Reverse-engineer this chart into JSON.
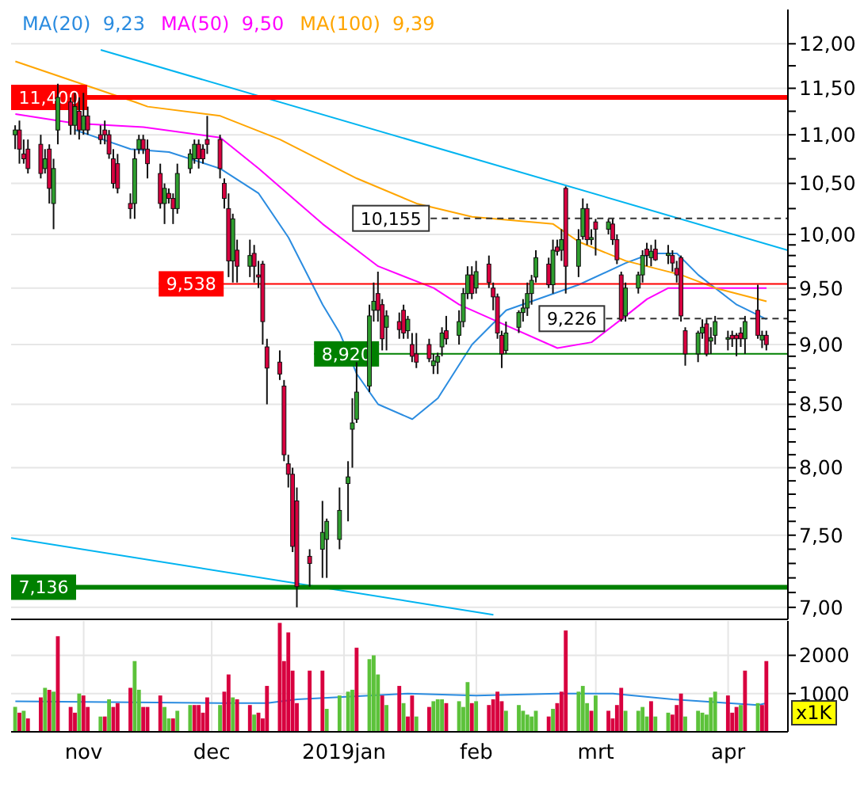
{
  "chart_data": [
    {
      "type": "candlestick",
      "log": true,
      "grid": true,
      "legend": "top left",
      "tick_labels": "y",
      "xlim": [
        "2018-10-15",
        "2019-04-15"
      ],
      "xticks": [
        {
          "value": "2018-11-01",
          "label": null
        },
        {
          "value": "2018-12-01",
          "label": null
        },
        {
          "value": "2019-01-01",
          "label": null
        },
        {
          "value": "2019-02-01",
          "label": null
        },
        {
          "value": "2019-03-01",
          "label": null
        },
        {
          "value": "2019-04-01",
          "label": null
        }
      ],
      "ylim": [
        6.92,
        12.4
      ],
      "yticks": [
        {
          "value": 7,
          "label": "7,00"
        },
        {
          "value": 7.1,
          "label": null
        },
        {
          "value": 7.2,
          "label": null
        },
        {
          "value": 7.3,
          "label": null
        },
        {
          "value": 7.4,
          "label": null
        },
        {
          "value": 7.5,
          "label": "7,50"
        },
        {
          "value": 7.6,
          "label": null
        },
        {
          "value": 7.7,
          "label": null
        },
        {
          "value": 7.8,
          "label": null
        },
        {
          "value": 7.9,
          "label": null
        },
        {
          "value": 8,
          "label": "8,00"
        },
        {
          "value": 8.1,
          "label": null
        },
        {
          "value": 8.2,
          "label": null
        },
        {
          "value": 8.3,
          "label": null
        },
        {
          "value": 8.4,
          "label": null
        },
        {
          "value": 8.5,
          "label": "8,50"
        },
        {
          "value": 8.6,
          "label": null
        },
        {
          "value": 8.7,
          "label": null
        },
        {
          "value": 8.8,
          "label": null
        },
        {
          "value": 8.9,
          "label": null
        },
        {
          "value": 9,
          "label": "9,00"
        },
        {
          "value": 9.1,
          "label": null
        },
        {
          "value": 9.2,
          "label": null
        },
        {
          "value": 9.3,
          "label": null
        },
        {
          "value": 9.4,
          "label": null
        },
        {
          "value": 9.5,
          "label": "9,50"
        },
        {
          "value": 9.6,
          "label": null
        },
        {
          "value": 9.7,
          "label": null
        },
        {
          "value": 9.8,
          "label": null
        },
        {
          "value": 9.9,
          "label": null
        },
        {
          "value": 10,
          "label": "10,00"
        },
        {
          "value": 10.25,
          "label": null
        },
        {
          "value": 10.5,
          "label": "10,50"
        },
        {
          "value": 10.75,
          "label": null
        },
        {
          "value": 11,
          "label": "11,00"
        },
        {
          "value": 11.25,
          "label": null
        },
        {
          "value": 11.5,
          "label": "11,50"
        },
        {
          "value": 11.75,
          "label": null
        },
        {
          "value": 12,
          "label": "12,00"
        }
      ],
      "x": [
        "2018-10-16",
        "2018-10-17",
        "2018-10-18",
        "2018-10-19",
        "2018-10-22",
        "2018-10-23",
        "2018-10-24",
        "2018-10-25",
        "2018-10-26",
        "2018-10-29",
        "2018-10-30",
        "2018-10-31",
        "2018-11-01",
        "2018-11-02",
        "2018-11-05",
        "2018-11-06",
        "2018-11-07",
        "2018-11-08",
        "2018-11-09",
        "2018-11-12",
        "2018-11-13",
        "2018-11-14",
        "2018-11-15",
        "2018-11-16",
        "2018-11-19",
        "2018-11-20",
        "2018-11-21",
        "2018-11-22",
        "2018-11-23",
        "2018-11-26",
        "2018-11-27",
        "2018-11-28",
        "2018-11-29",
        "2018-11-30",
        "2018-12-03",
        "2018-12-04",
        "2018-12-05",
        "2018-12-06",
        "2018-12-07",
        "2018-12-10",
        "2018-12-11",
        "2018-12-12",
        "2018-12-13",
        "2018-12-14",
        "2018-12-17",
        "2018-12-18",
        "2018-12-19",
        "2018-12-20",
        "2018-12-21",
        "2018-12-24",
        "2018-12-27",
        "2018-12-28",
        "2018-12-31",
        "2019-01-02",
        "2019-01-03",
        "2019-01-04",
        "2019-01-07",
        "2019-01-08",
        "2019-01-09",
        "2019-01-10",
        "2019-01-11",
        "2019-01-14",
        "2019-01-15",
        "2019-01-16",
        "2019-01-17",
        "2019-01-18",
        "2019-01-21",
        "2019-01-22",
        "2019-01-23",
        "2019-01-24",
        "2019-01-25",
        "2019-01-28",
        "2019-01-29",
        "2019-01-30",
        "2019-01-31",
        "2019-02-01",
        "2019-02-04",
        "2019-02-05",
        "2019-02-06",
        "2019-02-07",
        "2019-02-08",
        "2019-02-11",
        "2019-02-12",
        "2019-02-13",
        "2019-02-14",
        "2019-02-15",
        "2019-02-18",
        "2019-02-19",
        "2019-02-20",
        "2019-02-21",
        "2019-02-22",
        "2019-02-25",
        "2019-02-26",
        "2019-02-27",
        "2019-02-28",
        "2019-03-01",
        "2019-03-04",
        "2019-03-05",
        "2019-03-06",
        "2019-03-07",
        "2019-03-08",
        "2019-03-11",
        "2019-03-12",
        "2019-03-13",
        "2019-03-14",
        "2019-03-15",
        "2019-03-18",
        "2019-03-19",
        "2019-03-20",
        "2019-03-21",
        "2019-03-22",
        "2019-03-25",
        "2019-03-26",
        "2019-03-27",
        "2019-03-28",
        "2019-03-29",
        "2019-04-01",
        "2019-04-02",
        "2019-04-03",
        "2019-04-04",
        "2019-04-05",
        "2019-04-08",
        "2019-04-09",
        "2019-04-10"
      ],
      "ohlc": [
        [
          11.0,
          11.1,
          10.85,
          11.05
        ],
        [
          11.05,
          11.15,
          10.7,
          10.85
        ],
        [
          10.8,
          10.95,
          10.7,
          10.75
        ],
        [
          10.85,
          10.95,
          10.6,
          10.65
        ],
        [
          10.9,
          11.0,
          10.55,
          10.6
        ],
        [
          10.65,
          10.85,
          10.6,
          10.75
        ],
        [
          10.85,
          10.9,
          10.3,
          10.45
        ],
        [
          10.3,
          10.75,
          10.05,
          10.65
        ],
        [
          11.05,
          11.55,
          10.9,
          11.4
        ],
        [
          11.35,
          11.4,
          11.0,
          11.1
        ],
        [
          11.1,
          11.45,
          11.0,
          11.3
        ],
        [
          11.25,
          11.4,
          10.95,
          11.05
        ],
        [
          11.05,
          11.45,
          11.0,
          11.2
        ],
        [
          11.2,
          11.3,
          11.0,
          11.05
        ],
        [
          11.0,
          11.1,
          10.9,
          10.95
        ],
        [
          11.05,
          11.15,
          10.9,
          11.0
        ],
        [
          11.0,
          11.05,
          10.75,
          10.8
        ],
        [
          10.75,
          10.85,
          10.45,
          10.5
        ],
        [
          10.7,
          10.8,
          10.4,
          10.45
        ],
        [
          10.3,
          10.4,
          10.15,
          10.25
        ],
        [
          10.3,
          10.85,
          10.15,
          10.75
        ],
        [
          10.85,
          11.0,
          10.8,
          10.95
        ],
        [
          10.95,
          11.0,
          10.8,
          10.85
        ],
        [
          10.85,
          10.95,
          10.55,
          10.7
        ],
        [
          10.6,
          10.7,
          10.25,
          10.3
        ],
        [
          10.3,
          10.5,
          10.1,
          10.45
        ],
        [
          10.4,
          10.45,
          10.3,
          10.35
        ],
        [
          10.35,
          10.4,
          10.1,
          10.25
        ],
        [
          10.25,
          10.7,
          10.2,
          10.6
        ],
        [
          10.65,
          10.85,
          10.6,
          10.8
        ],
        [
          10.75,
          10.95,
          10.7,
          10.9
        ],
        [
          10.9,
          10.95,
          10.65,
          10.75
        ],
        [
          10.85,
          10.9,
          10.7,
          10.75
        ],
        [
          10.95,
          11.2,
          10.8,
          10.9
        ],
        [
          10.95,
          11.0,
          10.55,
          10.65
        ],
        [
          10.5,
          10.55,
          10.25,
          10.35
        ],
        [
          10.25,
          10.4,
          9.6,
          9.75
        ],
        [
          9.75,
          10.2,
          9.55,
          10.15
        ],
        [
          9.85,
          9.95,
          9.55,
          9.7
        ],
        [
          9.7,
          9.95,
          9.6,
          9.8
        ],
        [
          9.82,
          9.9,
          9.55,
          9.7
        ],
        [
          9.62,
          9.75,
          9.5,
          9.6
        ],
        [
          9.72,
          9.75,
          9.0,
          9.2
        ],
        [
          8.98,
          9.05,
          8.5,
          8.8
        ],
        [
          8.85,
          8.95,
          8.7,
          8.75
        ],
        [
          8.65,
          8.7,
          8.05,
          8.1
        ],
        [
          8.03,
          8.1,
          7.85,
          7.95
        ],
        [
          7.95,
          8.0,
          7.38,
          7.42
        ],
        [
          7.75,
          7.85,
          7.0,
          7.14
        ],
        [
          7.35,
          7.4,
          7.14,
          7.3
        ],
        [
          7.4,
          7.75,
          7.2,
          7.52
        ],
        [
          7.47,
          7.62,
          7.2,
          7.6
        ],
        [
          7.47,
          7.85,
          7.4,
          7.68
        ],
        [
          7.88,
          8.05,
          7.6,
          7.93
        ],
        [
          8.3,
          8.55,
          8.0,
          8.35
        ],
        [
          8.38,
          8.85,
          8.35,
          8.6
        ],
        [
          8.65,
          9.35,
          8.6,
          9.25
        ],
        [
          9.3,
          9.55,
          9.2,
          9.38
        ],
        [
          9.45,
          9.65,
          9.2,
          9.3
        ],
        [
          9.35,
          9.4,
          8.95,
          9.05
        ],
        [
          9.15,
          9.3,
          8.95,
          9.25
        ],
        [
          9.2,
          9.28,
          9.05,
          9.13
        ],
        [
          9.3,
          9.35,
          9.05,
          9.1
        ],
        [
          9.12,
          9.25,
          9.05,
          9.22
        ],
        [
          9.0,
          9.1,
          8.85,
          8.9
        ],
        [
          8.92,
          9.1,
          8.8,
          8.85
        ],
        [
          9.0,
          9.05,
          8.85,
          8.88
        ],
        [
          8.82,
          8.92,
          8.75,
          8.86
        ],
        [
          8.85,
          8.93,
          8.75,
          8.9
        ],
        [
          8.98,
          9.15,
          8.9,
          9.1
        ],
        [
          9.12,
          9.25,
          9.0,
          9.05
        ],
        [
          9.08,
          9.3,
          9.0,
          9.2
        ],
        [
          9.2,
          9.5,
          9.15,
          9.45
        ],
        [
          9.45,
          9.7,
          9.4,
          9.62
        ],
        [
          9.62,
          9.7,
          9.4,
          9.45
        ],
        [
          9.5,
          9.75,
          9.45,
          9.65
        ],
        [
          9.72,
          9.8,
          9.5,
          9.55
        ],
        [
          9.5,
          9.55,
          9.3,
          9.42
        ],
        [
          9.42,
          9.45,
          9.05,
          9.1
        ],
        [
          9.08,
          9.12,
          8.8,
          8.92
        ],
        [
          8.95,
          9.2,
          8.92,
          9.1
        ],
        [
          9.15,
          9.3,
          9.1,
          9.28
        ],
        [
          9.28,
          9.4,
          9.2,
          9.32
        ],
        [
          9.32,
          9.55,
          9.25,
          9.45
        ],
        [
          9.45,
          9.62,
          9.35,
          9.57
        ],
        [
          9.6,
          9.85,
          9.55,
          9.78
        ],
        [
          9.72,
          9.78,
          9.5,
          9.53
        ],
        [
          9.53,
          9.95,
          9.45,
          9.85
        ],
        [
          9.88,
          9.95,
          9.8,
          9.84
        ],
        [
          9.85,
          10.05,
          9.75,
          9.95
        ],
        [
          10.45,
          10.47,
          9.45,
          9.7
        ],
        [
          9.7,
          10.05,
          9.6,
          9.95
        ],
        [
          9.98,
          10.35,
          9.95,
          10.25
        ],
        [
          10.25,
          10.3,
          9.9,
          9.95
        ],
        [
          9.95,
          10.05,
          9.9,
          9.97
        ],
        [
          10.12,
          10.15,
          9.8,
          10.05
        ],
        [
          10.05,
          10.15,
          10.0,
          10.12
        ],
        [
          10.1,
          10.15,
          9.9,
          9.95
        ],
        [
          9.95,
          10.0,
          9.72,
          9.76
        ],
        [
          9.62,
          9.65,
          9.2,
          9.22
        ],
        [
          9.25,
          9.55,
          9.2,
          9.5
        ],
        [
          9.5,
          9.65,
          9.45,
          9.62
        ],
        [
          9.62,
          9.85,
          9.55,
          9.8
        ],
        [
          9.86,
          9.92,
          9.7,
          9.8
        ],
        [
          9.78,
          9.9,
          9.7,
          9.84
        ],
        [
          9.86,
          9.95,
          9.75,
          9.76
        ],
        [
          9.8,
          9.9,
          9.72,
          9.82
        ],
        [
          9.8,
          9.85,
          9.65,
          9.73
        ],
        [
          9.68,
          9.75,
          9.55,
          9.62
        ],
        [
          9.78,
          9.8,
          9.2,
          9.25
        ],
        [
          9.12,
          9.15,
          8.82,
          8.92
        ],
        [
          8.92,
          9.12,
          8.85,
          9.1
        ],
        [
          9.1,
          9.22,
          9.05,
          9.15
        ],
        [
          9.18,
          9.22,
          8.9,
          8.92
        ],
        [
          9.03,
          9.15,
          8.92,
          9.06
        ],
        [
          9.08,
          9.25,
          9.0,
          9.2
        ],
        [
          9.05,
          9.12,
          8.95,
          9.06
        ],
        [
          9.08,
          9.12,
          8.98,
          9.05
        ],
        [
          9.08,
          9.1,
          8.9,
          9.05
        ],
        [
          9.1,
          9.15,
          8.98,
          9.05
        ],
        [
          9.05,
          9.25,
          8.92,
          9.2
        ],
        [
          9.3,
          9.53,
          9.05,
          9.08
        ],
        [
          9.04,
          9.12,
          8.97,
          9.08
        ],
        [
          9.08,
          9.12,
          8.95,
          9.0
        ]
      ],
      "colors": [
        "#2e9e2e",
        "#d8003f",
        "#d8003f",
        "#d8003f",
        "#d8003f",
        "#2e9e2e",
        "#d8003f",
        "#2e9e2e",
        "#2e9e2e",
        "#d8003f",
        "#2e9e2e",
        "#d8003f",
        "#2e9e2e",
        "#d8003f",
        "#d8003f",
        "#d8003f",
        "#d8003f",
        "#d8003f",
        "#d8003f",
        "#d8003f",
        "#2e9e2e",
        "#2e9e2e",
        "#d8003f",
        "#d8003f",
        "#d8003f",
        "#2e9e2e",
        "#d8003f",
        "#d8003f",
        "#2e9e2e",
        "#2e9e2e",
        "#2e9e2e",
        "#d8003f",
        "#d8003f",
        "#d8003f",
        "#d8003f",
        "#d8003f",
        "#d8003f",
        "#2e9e2e",
        "#d8003f",
        "#2e9e2e",
        "#d8003f",
        "#d8003f",
        "#d8003f",
        "#d8003f",
        "#d8003f",
        "#d8003f",
        "#d8003f",
        "#d8003f",
        "#d8003f",
        "#d8003f",
        "#2e9e2e",
        "#2e9e2e",
        "#2e9e2e",
        "#2e9e2e",
        "#2e9e2e",
        "#2e9e2e",
        "#2e9e2e",
        "#2e9e2e",
        "#d8003f",
        "#d8003f",
        "#2e9e2e",
        "#d8003f",
        "#d8003f",
        "#2e9e2e",
        "#d8003f",
        "#d8003f",
        "#d8003f",
        "#2e9e2e",
        "#2e9e2e",
        "#2e9e2e",
        "#d8003f",
        "#2e9e2e",
        "#2e9e2e",
        "#2e9e2e",
        "#d8003f",
        "#2e9e2e",
        "#d8003f",
        "#d8003f",
        "#d8003f",
        "#d8003f",
        "#2e9e2e",
        "#2e9e2e",
        "#2e9e2e",
        "#2e9e2e",
        "#2e9e2e",
        "#2e9e2e",
        "#d8003f",
        "#2e9e2e",
        "#d8003f",
        "#2e9e2e",
        "#d8003f",
        "#2e9e2e",
        "#2e9e2e",
        "#d8003f",
        "#2e9e2e",
        "#d8003f",
        "#2e9e2e",
        "#d8003f",
        "#d8003f",
        "#d8003f",
        "#2e9e2e",
        "#2e9e2e",
        "#2e9e2e",
        "#d8003f",
        "#2e9e2e",
        "#d8003f",
        "#2e9e2e",
        "#d8003f",
        "#d8003f",
        "#d8003f",
        "#d8003f",
        "#2e9e2e",
        "#2e9e2e",
        "#d8003f",
        "#2e9e2e",
        "#2e9e2e",
        "#2e9e2e",
        "#d8003f",
        "#d8003f",
        "#d8003f",
        "#2e9e2e",
        "#d8003f",
        "#2e9e2e",
        "#d8003f"
      ],
      "series": [
        {
          "type": "line",
          "name": "MA(20)  9,23",
          "color": "#2b8ce0",
          "x": [
            "2018-10-30",
            "2018-11-12",
            "2018-11-21",
            "2018-12-03",
            "2018-12-12",
            "2018-12-19",
            "2018-12-27",
            "2018-12-31",
            "2019-01-04",
            "2019-01-09",
            "2019-01-17",
            "2019-01-23",
            "2019-01-31",
            "2019-02-08",
            "2019-02-25",
            "2019-03-08",
            "2019-03-14",
            "2019-03-20",
            "2019-03-25",
            "2019-04-03",
            "2019-04-10"
          ],
          "values": [
            11.05,
            10.85,
            10.82,
            10.65,
            10.4,
            9.97,
            9.35,
            9.1,
            8.75,
            8.5,
            8.38,
            8.55,
            9.0,
            9.3,
            9.53,
            9.73,
            9.82,
            9.82,
            9.62,
            9.35,
            9.22
          ]
        },
        {
          "type": "line",
          "name": "MA(50)  9,50",
          "color": "#ff00ff",
          "x": [
            "2018-10-16",
            "2018-10-30",
            "2018-11-15",
            "2018-12-03",
            "2018-12-12",
            "2018-12-27",
            "2019-01-09",
            "2019-01-22",
            "2019-01-28",
            "2019-02-06",
            "2019-02-20",
            "2019-02-28",
            "2019-03-08",
            "2019-03-13",
            "2019-03-18",
            "2019-03-27",
            "2019-04-10"
          ],
          "values": [
            11.22,
            11.12,
            11.08,
            10.97,
            10.65,
            10.1,
            9.7,
            9.5,
            9.35,
            9.2,
            8.97,
            9.02,
            9.25,
            9.4,
            9.5,
            9.5,
            9.5
          ]
        },
        {
          "type": "line",
          "name": "MA(100)  9,39",
          "color": "#ffa500",
          "x": [
            "2018-10-16",
            "2018-11-13",
            "2018-11-16",
            "2018-12-03",
            "2018-12-17",
            "2019-01-04",
            "2019-01-18",
            "2019-01-31",
            "2019-02-19",
            "2019-02-25",
            "2019-03-08",
            "2019-03-21",
            "2019-03-29",
            "2019-04-10"
          ],
          "values": [
            11.8,
            11.35,
            11.3,
            11.2,
            10.95,
            10.55,
            10.3,
            10.17,
            10.1,
            9.93,
            9.75,
            9.62,
            9.5,
            9.38
          ]
        },
        {
          "type": "line",
          "color": "#00b4f0",
          "x": [
            "2018-11-05",
            "2019-04-15"
          ],
          "values": [
            11.93,
            9.85
          ]
        },
        {
          "type": "line",
          "color": "#00b4f0",
          "x": [
            "2018-10-15",
            "2019-02-05"
          ],
          "values": [
            7.48,
            6.95
          ]
        }
      ],
      "ref_lines": [
        {
          "axis": "y",
          "value": 11.4,
          "label": "11,400",
          "color": "#ff0000"
        },
        {
          "axis": "y",
          "value": 9.538,
          "label": "9,538",
          "color": "#ff0000"
        },
        {
          "axis": "y",
          "value": 8.92,
          "label": "8,920",
          "color": "#008000"
        },
        {
          "axis": "y",
          "value": 7.136,
          "label": "7,136",
          "color": "#008000"
        },
        {
          "axis": "y",
          "value": 10.155,
          "label": "10,155",
          "color": "#333333",
          "line_style": "dashed"
        },
        {
          "axis": "y",
          "value": 9.226,
          "label": "9,226",
          "color": "#333333",
          "line_style": "dashed"
        }
      ]
    },
    {
      "type": "bar",
      "grid": true,
      "xlim": [
        "2018-10-15",
        "2019-04-15"
      ],
      "xticks": [
        {
          "value": "2018-11-01",
          "label": "nov"
        },
        {
          "value": "2018-12-01",
          "label": "dec"
        },
        {
          "value": "2019-01-01",
          "label": "2019jan"
        },
        {
          "value": "2019-02-01",
          "label": "feb"
        },
        {
          "value": "2019-03-01",
          "label": "mrt"
        },
        {
          "value": "2019-04-01",
          "label": "apr"
        }
      ],
      "ylim": [
        0,
        2900
      ],
      "yticks": [
        1000,
        2000
      ],
      "annotations": [
        "x1K"
      ],
      "x": [
        "2018-10-16",
        "2018-10-17",
        "2018-10-18",
        "2018-10-19",
        "2018-10-22",
        "2018-10-23",
        "2018-10-24",
        "2018-10-25",
        "2018-10-26",
        "2018-10-29",
        "2018-10-30",
        "2018-10-31",
        "2018-11-01",
        "2018-11-02",
        "2018-11-05",
        "2018-11-06",
        "2018-11-07",
        "2018-11-08",
        "2018-11-09",
        "2018-11-12",
        "2018-11-13",
        "2018-11-14",
        "2018-11-15",
        "2018-11-16",
        "2018-11-19",
        "2018-11-20",
        "2018-11-21",
        "2018-11-22",
        "2018-11-23",
        "2018-11-26",
        "2018-11-27",
        "2018-11-28",
        "2018-11-29",
        "2018-11-30",
        "2018-12-03",
        "2018-12-04",
        "2018-12-05",
        "2018-12-06",
        "2018-12-07",
        "2018-12-10",
        "2018-12-11",
        "2018-12-12",
        "2018-12-13",
        "2018-12-14",
        "2018-12-17",
        "2018-12-18",
        "2018-12-19",
        "2018-12-20",
        "2018-12-21",
        "2018-12-24",
        "2018-12-27",
        "2018-12-28",
        "2018-12-31",
        "2019-01-02",
        "2019-01-03",
        "2019-01-04",
        "2019-01-07",
        "2019-01-08",
        "2019-01-09",
        "2019-01-10",
        "2019-01-11",
        "2019-01-14",
        "2019-01-15",
        "2019-01-16",
        "2019-01-17",
        "2019-01-18",
        "2019-01-21",
        "2019-01-22",
        "2019-01-23",
        "2019-01-24",
        "2019-01-25",
        "2019-01-28",
        "2019-01-29",
        "2019-01-30",
        "2019-01-31",
        "2019-02-01",
        "2019-02-04",
        "2019-02-05",
        "2019-02-06",
        "2019-02-07",
        "2019-02-08",
        "2019-02-11",
        "2019-02-12",
        "2019-02-13",
        "2019-02-14",
        "2019-02-15",
        "2019-02-18",
        "2019-02-19",
        "2019-02-20",
        "2019-02-21",
        "2019-02-22",
        "2019-02-25",
        "2019-02-26",
        "2019-02-27",
        "2019-02-28",
        "2019-03-01",
        "2019-03-04",
        "2019-03-05",
        "2019-03-06",
        "2019-03-07",
        "2019-03-08",
        "2019-03-11",
        "2019-03-12",
        "2019-03-13",
        "2019-03-14",
        "2019-03-15",
        "2019-03-18",
        "2019-03-19",
        "2019-03-20",
        "2019-03-21",
        "2019-03-22",
        "2019-03-25",
        "2019-03-26",
        "2019-03-27",
        "2019-03-28",
        "2019-03-29",
        "2019-04-01",
        "2019-04-02",
        "2019-04-03",
        "2019-04-04",
        "2019-04-05",
        "2019-04-08",
        "2019-04-09",
        "2019-04-10"
      ],
      "values": [
        650,
        500,
        550,
        350,
        900,
        1150,
        1100,
        1050,
        2500,
        650,
        500,
        1000,
        950,
        650,
        400,
        400,
        850,
        650,
        750,
        1150,
        1850,
        1100,
        650,
        650,
        950,
        650,
        350,
        350,
        550,
        700,
        700,
        700,
        500,
        900,
        700,
        1050,
        1500,
        900,
        850,
        700,
        450,
        500,
        350,
        1200,
        2850,
        1850,
        2600,
        1600,
        750,
        1600,
        1600,
        600,
        950,
        1050,
        1100,
        2200,
        1900,
        2000,
        1500,
        950,
        700,
        1200,
        750,
        400,
        950,
        400,
        650,
        800,
        850,
        850,
        750,
        800,
        650,
        1300,
        750,
        800,
        700,
        850,
        1050,
        800,
        550,
        700,
        550,
        450,
        400,
        550,
        400,
        600,
        750,
        1050,
        2650,
        1050,
        1200,
        750,
        550,
        950,
        550,
        350,
        700,
        1150,
        550,
        550,
        650,
        400,
        800,
        400,
        500,
        450,
        700,
        1000,
        400,
        550,
        500,
        450,
        900,
        1050,
        950,
        500,
        650,
        700,
        1600,
        750,
        700,
        1850
      ],
      "colors": [
        "#5cc23a",
        "#d8003f",
        "#5cc23a",
        "#d8003f",
        "#d8003f",
        "#5cc23a",
        "#d8003f",
        "#5cc23a",
        "#d8003f",
        "#d8003f",
        "#d8003f",
        "#5cc23a",
        "#d8003f",
        "#d8003f",
        "#5cc23a",
        "#d8003f",
        "#5cc23a",
        "#d8003f",
        "#d8003f",
        "#d8003f",
        "#5cc23a",
        "#5cc23a",
        "#d8003f",
        "#d8003f",
        "#d8003f",
        "#5cc23a",
        "#5cc23a",
        "#d8003f",
        "#5cc23a",
        "#5cc23a",
        "#d8003f",
        "#d8003f",
        "#d8003f",
        "#d8003f",
        "#5cc23a",
        "#d8003f",
        "#d8003f",
        "#5cc23a",
        "#d8003f",
        "#d8003f",
        "#5cc23a",
        "#d8003f",
        "#d8003f",
        "#d8003f",
        "#d8003f",
        "#d8003f",
        "#d8003f",
        "#d8003f",
        "#d8003f",
        "#d8003f",
        "#d8003f",
        "#5cc23a",
        "#5cc23a",
        "#5cc23a",
        "#5cc23a",
        "#d8003f",
        "#5cc23a",
        "#5cc23a",
        "#5cc23a",
        "#d8003f",
        "#5cc23a",
        "#d8003f",
        "#5cc23a",
        "#d8003f",
        "#d8003f",
        "#5cc23a",
        "#d8003f",
        "#5cc23a",
        "#5cc23a",
        "#5cc23a",
        "#d8003f",
        "#5cc23a",
        "#5cc23a",
        "#5cc23a",
        "#d8003f",
        "#5cc23a",
        "#d8003f",
        "#d8003f",
        "#d8003f",
        "#d8003f",
        "#5cc23a",
        "#5cc23a",
        "#5cc23a",
        "#5cc23a",
        "#5cc23a",
        "#5cc23a",
        "#d8003f",
        "#5cc23a",
        "#d8003f",
        "#d8003f",
        "#d8003f",
        "#5cc23a",
        "#5cc23a",
        "#5cc23a",
        "#d8003f",
        "#5cc23a",
        "#d8003f",
        "#d8003f",
        "#d8003f",
        "#d8003f",
        "#5cc23a",
        "#5cc23a",
        "#5cc23a",
        "#5cc23a",
        "#d8003f",
        "#5cc23a",
        "#5cc23a",
        "#d8003f",
        "#d8003f",
        "#d8003f",
        "#5cc23a",
        "#5cc23a",
        "#5cc23a",
        "#5cc23a",
        "#5cc23a",
        "#5cc23a",
        "#d8003f",
        "#d8003f",
        "#d8003f",
        "#5cc23a",
        "#d8003f",
        "#5cc23a",
        "#d8003f",
        "#d8003f"
      ],
      "series": [
        {
          "type": "line",
          "color": "#2b8ce0",
          "x": [
            "2018-10-16",
            "2018-12-03",
            "2018-12-14",
            "2018-12-21",
            "2019-01-07",
            "2019-01-16",
            "2019-02-01",
            "2019-02-20",
            "2019-03-05",
            "2019-03-19",
            "2019-04-01",
            "2019-04-08",
            "2019-04-10"
          ],
          "values": [
            800,
            750,
            750,
            850,
            950,
            1000,
            950,
            1000,
            1000,
            850,
            750,
            700,
            750
          ]
        }
      ]
    }
  ]
}
